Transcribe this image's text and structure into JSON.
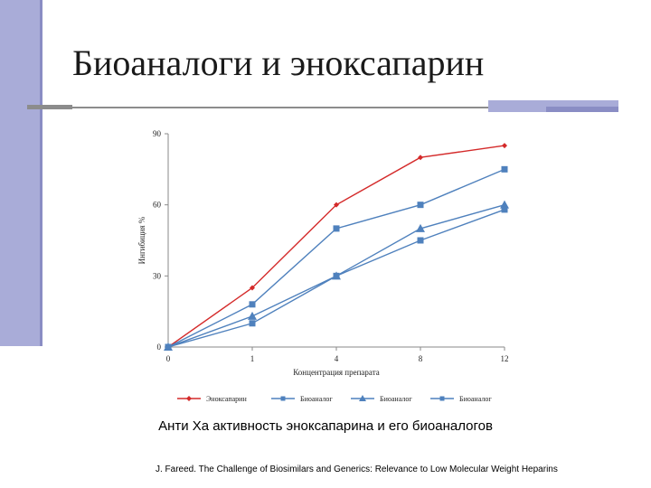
{
  "slide": {
    "title": "Биоаналоги и эноксапарин",
    "caption": "Анти Ха активность эноксапарина и его биоаналогов",
    "source": "J. Fareed. The Challenge of Biosimilars and Generics: Relevance to Low Molecular Weight Heparins"
  },
  "colors": {
    "accent": "#a9acd8",
    "enox": "#d42a2a",
    "bio": "#4f81bd"
  },
  "chart_data": {
    "type": "line",
    "title": "",
    "xlabel": "Концентрация препарата",
    "ylabel": "Ингибиция %",
    "categories": [
      "0",
      "1",
      "4",
      "8",
      "12"
    ],
    "yticks": [
      0,
      30,
      60,
      90
    ],
    "ylim": [
      0,
      90
    ],
    "grid": false,
    "legend_position": "bottom",
    "series": [
      {
        "name": "Эноксапарин",
        "marker": "diamond",
        "color": "#d42a2a",
        "values": [
          0,
          25,
          60,
          80,
          85
        ]
      },
      {
        "name": "Биоаналог",
        "marker": "square",
        "color": "#4f81bd",
        "values": [
          0,
          18,
          50,
          60,
          75
        ]
      },
      {
        "name": "Биоаналог",
        "marker": "triangle",
        "color": "#4f81bd",
        "values": [
          0,
          13,
          30,
          50,
          60
        ]
      },
      {
        "name": "Биоаналог",
        "marker": "square",
        "color": "#4f81bd",
        "values": [
          0,
          10,
          30,
          45,
          58
        ]
      }
    ]
  }
}
